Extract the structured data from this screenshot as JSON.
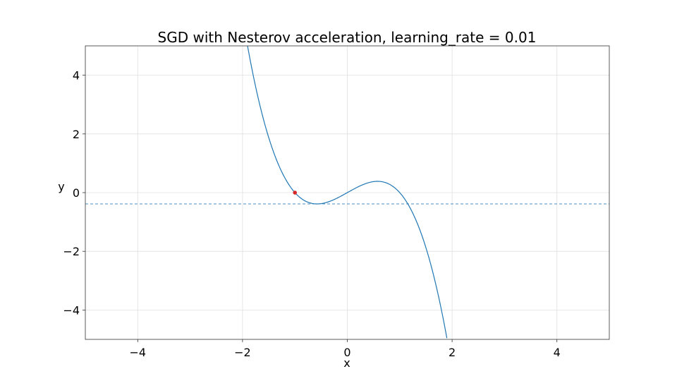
{
  "chart_data": {
    "type": "line",
    "title": "SGD with Nesterov acceleration, learning_rate = 0.01",
    "xlabel": "x",
    "ylabel": "y",
    "xlim": [
      -5,
      5
    ],
    "ylim": [
      -5,
      5
    ],
    "grid": true,
    "x_ticks": [
      -4,
      -2,
      0,
      2,
      4
    ],
    "y_ticks": [
      -4,
      -2,
      0,
      2,
      4
    ],
    "x_tick_labels": [
      "−4",
      "−2",
      "0",
      "2",
      "4"
    ],
    "y_tick_labels": [
      "−4",
      "−2",
      "0",
      "2",
      "4"
    ],
    "series": [
      {
        "function": "-x^3 + x",
        "x": [
          -1.95,
          -1.8,
          -1.6,
          -1.4,
          -1.2,
          -1.0,
          -0.8,
          -0.6,
          -0.4,
          -0.2,
          0.0,
          0.2,
          0.4,
          0.6,
          0.8,
          1.0,
          1.2,
          1.4,
          1.6,
          1.8,
          1.9
        ],
        "y": [
          5.46,
          4.03,
          2.5,
          1.34,
          0.53,
          0.0,
          -0.29,
          -0.38,
          -0.34,
          -0.19,
          0.0,
          0.19,
          0.34,
          0.38,
          0.29,
          0.0,
          -0.53,
          -1.34,
          -2.5,
          -4.03,
          -4.96
        ],
        "color": "#1f77b4"
      }
    ],
    "reference_line": {
      "y": -0.385,
      "style": "dashed",
      "color": "#1f77b4"
    },
    "current_point": {
      "x": -1.0,
      "y": 0.0,
      "color": "#d62728"
    }
  }
}
